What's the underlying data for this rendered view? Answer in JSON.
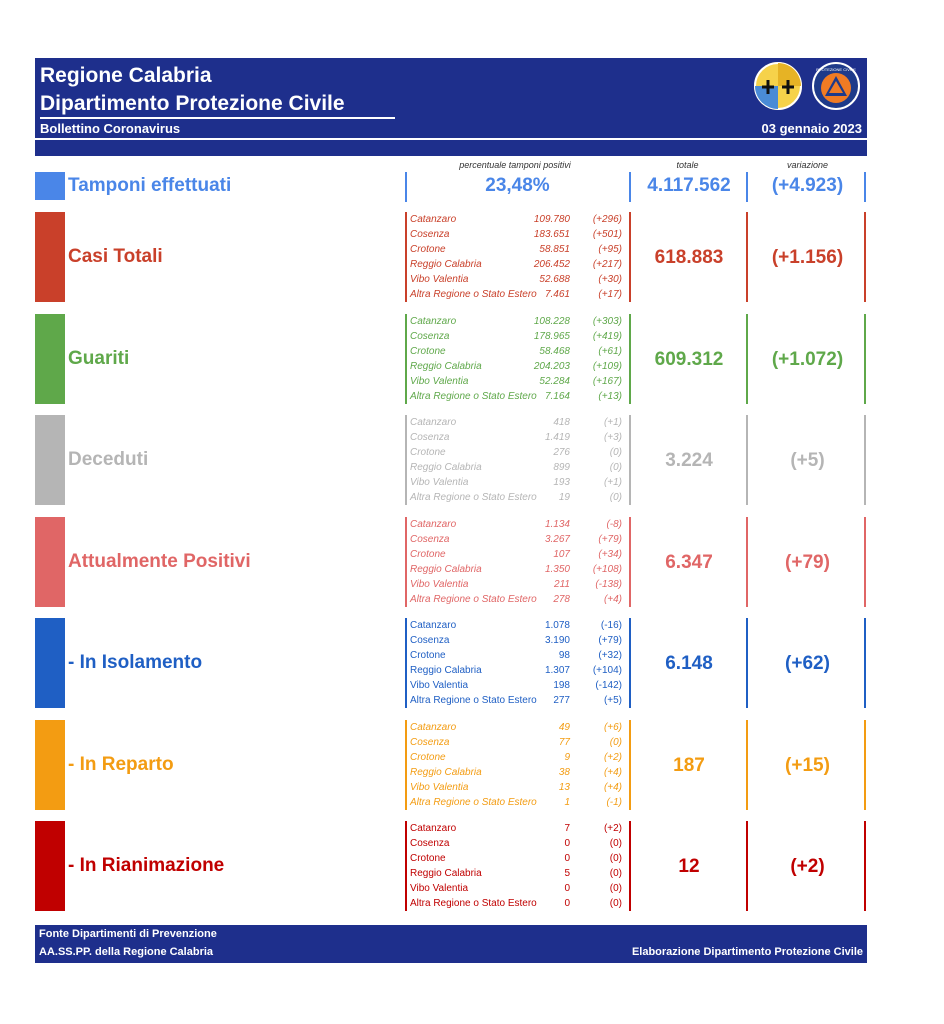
{
  "header": {
    "title1": "Regione Calabria",
    "title2": "Dipartimento Protezione Civile",
    "subtitle": "Bollettino Coronavirus",
    "date": "03 gennaio 2023",
    "logo_left_icon": "regione-calabria-crest-icon",
    "logo_right_icon": "protezione-civile-calabria-logo-icon",
    "logo_right_text": "PROTEZIONE CIVILE"
  },
  "columns": {
    "percentuale": "percentuale tamponi positivi",
    "totale": "totale",
    "variazione": "variazione"
  },
  "tamponi": {
    "label": "Tamponi effettuati",
    "percent": "23,48%",
    "total": "4.117.562",
    "change": "(+4.923)",
    "color": "#4a86e8"
  },
  "sections": [
    {
      "label": "Casi Totali",
      "color": "#c9402a",
      "total": "618.883",
      "change": "(+1.156)",
      "provinces": [
        {
          "name": "Catanzaro",
          "value": "109.780",
          "delta": "(+296)"
        },
        {
          "name": "Cosenza",
          "value": "183.651",
          "delta": "(+501)"
        },
        {
          "name": "Crotone",
          "value": "58.851",
          "delta": "(+95)"
        },
        {
          "name": "Reggio Calabria",
          "value": "206.452",
          "delta": "(+217)"
        },
        {
          "name": "Vibo Valentia",
          "value": "52.688",
          "delta": "(+30)"
        },
        {
          "name": "Altra Regione o Stato Estero",
          "value": "7.461",
          "delta": "(+17)"
        }
      ]
    },
    {
      "label": "Guariti",
      "color": "#5fa84a",
      "total": "609.312",
      "change": "(+1.072)",
      "provinces": [
        {
          "name": "Catanzaro",
          "value": "108.228",
          "delta": "(+303)"
        },
        {
          "name": "Cosenza",
          "value": "178.965",
          "delta": "(+419)"
        },
        {
          "name": "Crotone",
          "value": "58.468",
          "delta": "(+61)"
        },
        {
          "name": "Reggio Calabria",
          "value": "204.203",
          "delta": "(+109)"
        },
        {
          "name": "Vibo Valentia",
          "value": "52.284",
          "delta": "(+167)"
        },
        {
          "name": "Altra Regione o Stato Estero",
          "value": "7.164",
          "delta": "(+13)"
        }
      ]
    },
    {
      "label": "Deceduti",
      "color": "#b5b5b5",
      "total": "3.224",
      "change": "(+5)",
      "provinces": [
        {
          "name": "Catanzaro",
          "value": "418",
          "delta": "(+1)"
        },
        {
          "name": "Cosenza",
          "value": "1.419",
          "delta": "(+3)"
        },
        {
          "name": "Crotone",
          "value": "276",
          "delta": "(0)"
        },
        {
          "name": "Reggio Calabria",
          "value": "899",
          "delta": "(0)"
        },
        {
          "name": "Vibo Valentia",
          "value": "193",
          "delta": "(+1)"
        },
        {
          "name": "Altra Regione o Stato Estero",
          "value": "19",
          "delta": "(0)"
        }
      ]
    },
    {
      "label": "Attualmente Positivi",
      "color": "#e06666",
      "total": "6.347",
      "change": "(+79)",
      "provinces": [
        {
          "name": "Catanzaro",
          "value": "1.134",
          "delta": "(-8)"
        },
        {
          "name": "Cosenza",
          "value": "3.267",
          "delta": "(+79)"
        },
        {
          "name": "Crotone",
          "value": "107",
          "delta": "(+34)"
        },
        {
          "name": "Reggio Calabria",
          "value": "1.350",
          "delta": "(+108)"
        },
        {
          "name": "Vibo Valentia",
          "value": "211",
          "delta": "(-138)"
        },
        {
          "name": "Altra Regione o Stato Estero",
          "value": "278",
          "delta": "(+4)"
        }
      ]
    },
    {
      "label": " - In Isolamento",
      "color": "#1f5fc4",
      "total": "6.148",
      "change": "(+62)",
      "provinces": [
        {
          "name": "Catanzaro",
          "value": "1.078",
          "delta": "(-16)"
        },
        {
          "name": "Cosenza",
          "value": "3.190",
          "delta": "(+79)"
        },
        {
          "name": "Crotone",
          "value": "98",
          "delta": "(+32)"
        },
        {
          "name": "Reggio Calabria",
          "value": "1.307",
          "delta": "(+104)"
        },
        {
          "name": "Vibo Valentia",
          "value": "198",
          "delta": "(-142)"
        },
        {
          "name": "Altra Regione o Stato Estero",
          "value": "277",
          "delta": "(+5)"
        }
      ]
    },
    {
      "label": " - In Reparto",
      "color": "#f39c12",
      "total": "187",
      "change": "(+15)",
      "provinces": [
        {
          "name": "Catanzaro",
          "value": "49",
          "delta": "(+6)"
        },
        {
          "name": "Cosenza",
          "value": "77",
          "delta": "(0)"
        },
        {
          "name": "Crotone",
          "value": "9",
          "delta": "(+2)"
        },
        {
          "name": "Reggio Calabria",
          "value": "38",
          "delta": "(+4)"
        },
        {
          "name": "Vibo Valentia",
          "value": "13",
          "delta": "(+4)"
        },
        {
          "name": "Altra Regione o Stato Estero",
          "value": "1",
          "delta": "(-1)"
        }
      ]
    },
    {
      "label": " - In Rianimazione",
      "color": "#c00000",
      "total": "12",
      "change": "(+2)",
      "provinces": [
        {
          "name": "Catanzaro",
          "value": "7",
          "delta": "(+2)"
        },
        {
          "name": "Cosenza",
          "value": "0",
          "delta": "(0)"
        },
        {
          "name": "Crotone",
          "value": "0",
          "delta": "(0)"
        },
        {
          "name": "Reggio Calabria",
          "value": "5",
          "delta": "(0)"
        },
        {
          "name": "Vibo Valentia",
          "value": "0",
          "delta": "(0)"
        },
        {
          "name": "Altra Regione o Stato Estero",
          "value": "0",
          "delta": "(0)"
        }
      ]
    }
  ],
  "footer": {
    "line1": "Fonte Dipartimenti di Prevenzione",
    "line2": "AA.SS.PP.  della Regione Calabria",
    "right": "Elaborazione Dipartimento Protezione Civile"
  }
}
